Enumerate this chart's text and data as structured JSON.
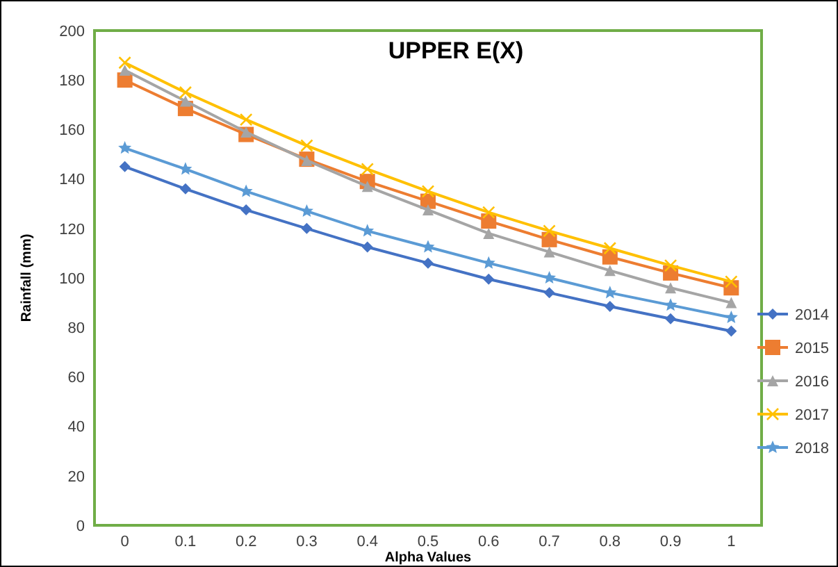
{
  "chart_data": {
    "type": "line",
    "title": "UPPER E(X)",
    "xlabel": "Alpha Values",
    "ylabel": "Rainfall (mm)",
    "categories": [
      "0",
      "0.1",
      "0.2",
      "0.3",
      "0.4",
      "0.5",
      "0.6",
      "0.7",
      "0.8",
      "0.9",
      "1"
    ],
    "series": [
      {
        "name": "2014",
        "color": "#4472c4",
        "marker": "diamond",
        "values": [
          145,
          136,
          127.5,
          120,
          112.5,
          106,
          99.5,
          94,
          88.5,
          83.5,
          78.5
        ]
      },
      {
        "name": "2015",
        "color": "#ed7d31",
        "marker": "square",
        "values": [
          180,
          168.5,
          158,
          148,
          139,
          131,
          123,
          115.5,
          108.5,
          102,
          96
        ]
      },
      {
        "name": "2016",
        "color": "#a5a5a5",
        "marker": "triangle",
        "values": [
          184,
          171.5,
          159,
          147.5,
          137,
          127.5,
          118,
          110.5,
          103,
          96,
          90
        ]
      },
      {
        "name": "2017",
        "color": "#ffc000",
        "marker": "cross",
        "values": [
          187,
          175,
          164,
          153.5,
          144,
          135,
          126.5,
          119,
          112,
          105,
          98.5
        ]
      },
      {
        "name": "2018",
        "color": "#5b9bd5",
        "marker": "star",
        "values": [
          152.5,
          144,
          135,
          127,
          119,
          112.5,
          106,
          100,
          94,
          89,
          84
        ]
      }
    ],
    "ylim": [
      0,
      200
    ],
    "yticks": [
      0,
      20,
      40,
      60,
      80,
      100,
      120,
      140,
      160,
      180,
      200
    ],
    "grid": false,
    "legend": "right"
  }
}
